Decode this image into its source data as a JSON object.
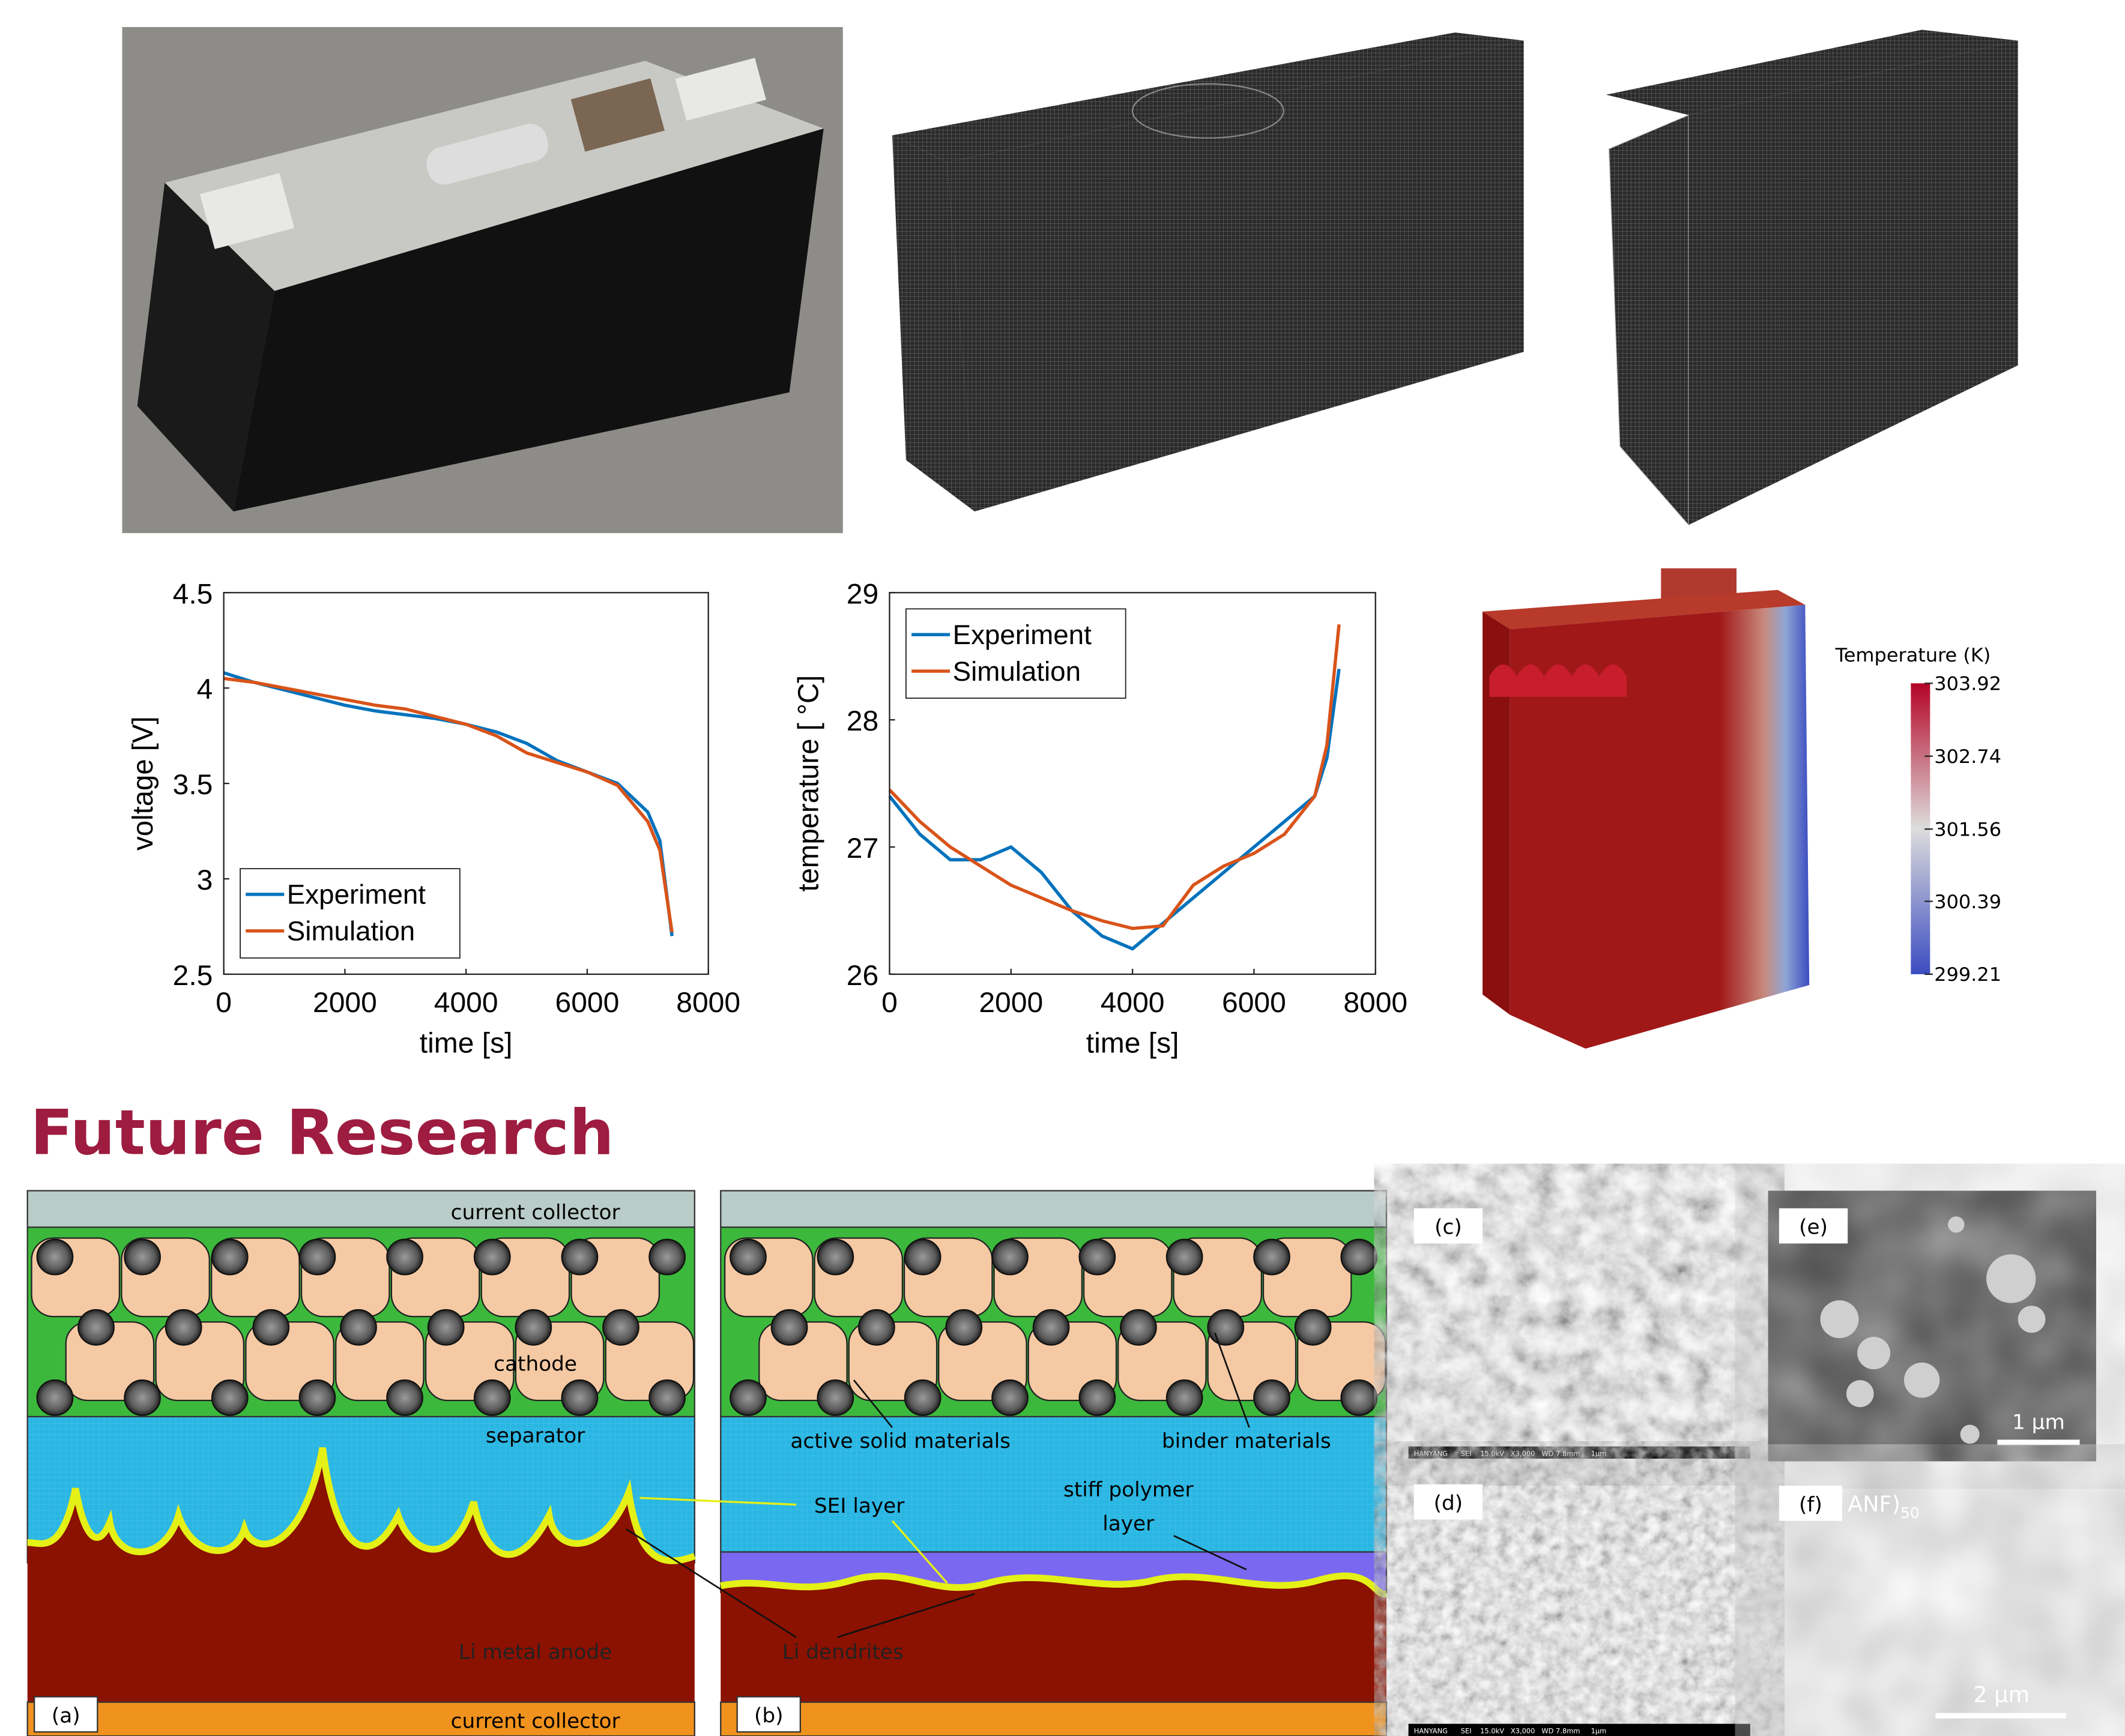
{
  "chart_data": [
    {
      "type": "line",
      "x_label": "time [s]",
      "y_label": "voltage [V]",
      "x": [
        0,
        500,
        1000,
        1500,
        2000,
        2500,
        3000,
        3500,
        4000,
        4500,
        5000,
        5500,
        6000,
        6500,
        7000,
        7200,
        7400
      ],
      "xlim": [
        0,
        8000
      ],
      "xticks": [
        0,
        2000,
        4000,
        6000,
        8000
      ],
      "ylim": [
        2.5,
        4.5
      ],
      "yticks": [
        2.5,
        3,
        3.5,
        4,
        4.5
      ],
      "legend": "lower left",
      "series": [
        {
          "name": "Experiment",
          "color": "#0072bd",
          "values": [
            4.08,
            4.03,
            3.99,
            3.95,
            3.91,
            3.88,
            3.86,
            3.84,
            3.81,
            3.77,
            3.71,
            3.62,
            3.56,
            3.5,
            3.35,
            3.2,
            2.7
          ]
        },
        {
          "name": "Simulation",
          "color": "#d95319",
          "values": [
            4.05,
            4.03,
            4.0,
            3.97,
            3.94,
            3.91,
            3.89,
            3.85,
            3.81,
            3.75,
            3.66,
            3.61,
            3.56,
            3.49,
            3.3,
            3.15,
            2.72
          ]
        }
      ]
    },
    {
      "type": "line",
      "x_label": "time [s]",
      "y_label": "temperature [ °C]",
      "x": [
        0,
        500,
        1000,
        1500,
        2000,
        2500,
        3000,
        3500,
        4000,
        4500,
        5000,
        5500,
        6000,
        6500,
        7000,
        7200,
        7400
      ],
      "xlim": [
        0,
        8000
      ],
      "xticks": [
        0,
        2000,
        4000,
        6000,
        8000
      ],
      "ylim": [
        26,
        29
      ],
      "yticks": [
        26,
        27,
        28,
        29
      ],
      "legend": "upper left",
      "series": [
        {
          "name": "Experiment",
          "color": "#0072bd",
          "values": [
            27.4,
            27.1,
            26.9,
            26.9,
            27.0,
            26.8,
            26.5,
            26.3,
            26.2,
            26.4,
            26.6,
            26.8,
            27.0,
            27.2,
            27.4,
            27.7,
            28.4
          ]
        },
        {
          "name": "Simulation",
          "color": "#d95319",
          "values": [
            27.45,
            27.2,
            27.0,
            26.85,
            26.7,
            26.6,
            26.5,
            26.42,
            26.36,
            26.38,
            26.7,
            26.85,
            26.95,
            27.1,
            27.4,
            27.8,
            28.75
          ]
        }
      ]
    }
  ],
  "colorbar": {
    "title": "Temperature (K)",
    "colors": [
      "#3b4cc0",
      "#dddddd",
      "#b40426"
    ],
    "ticks": [
      303.92,
      302.74,
      301.56,
      300.39,
      299.21
    ]
  },
  "section_title": "Future Research",
  "diagram_a": {
    "top_collector": "current collector",
    "cathode": "cathode",
    "separator": "separator",
    "sei": "SEI layer",
    "anode": "Li metal anode",
    "bottom_collector": "current collector",
    "panel": "(a)"
  },
  "diagram_b": {
    "active": "active solid materials",
    "binder": "binder materials",
    "polymer": [
      "stiff polymer",
      "layer"
    ],
    "dendrites": "Li dendrites",
    "panel": "(b)"
  },
  "sem": {
    "c": {
      "panel": "(c)",
      "footer": "HANYANG      SEI    15.0kV   X3,000   WD 7.8mm     1μm"
    },
    "d": {
      "panel": "(d)",
      "footer": "HANYANG      SEI    15.0kV   X3,000   WD 7.8mm     1μm"
    },
    "e": {
      "panel": "(e)",
      "scale": "1 μm"
    },
    "f": {
      "panel": "(f)",
      "label": "ANF)",
      "subscript": "50",
      "scale": "2 μm"
    }
  }
}
